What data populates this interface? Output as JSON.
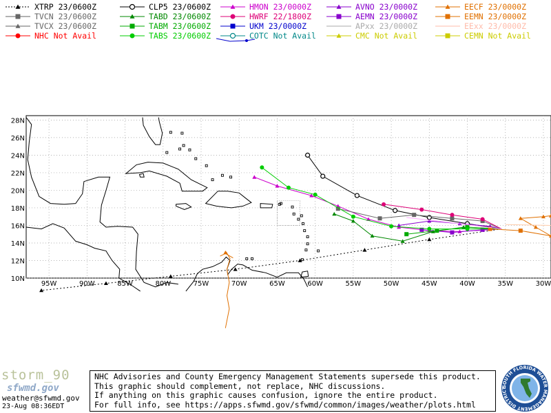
{
  "legend": [
    {
      "label": "XTRP 23/0600Z",
      "color": "#000000",
      "marker": "triangle",
      "dash": true
    },
    {
      "label": "CLP5 23/0600Z",
      "color": "#000000",
      "marker": "circle-open"
    },
    {
      "label": "HMON 23/0000Z",
      "color": "#cc00cc",
      "marker": "triangle"
    },
    {
      "label": "AVNO 23/0000Z",
      "color": "#8800cc",
      "marker": "triangle"
    },
    {
      "label": "EECF 23/0000Z",
      "color": "#e07000",
      "marker": "triangle"
    },
    {
      "label": "TVCN 23/0600Z",
      "color": "#666666",
      "marker": "square"
    },
    {
      "label": "TABD 23/0600Z",
      "color": "#008800",
      "marker": "triangle"
    },
    {
      "label": "HWRF 22/1800Z",
      "color": "#dd0077",
      "marker": "circle"
    },
    {
      "label": "AEMN 23/0000Z",
      "color": "#8800cc",
      "marker": "square"
    },
    {
      "label": "EEMN 23/0000Z",
      "color": "#e07000",
      "marker": "square"
    },
    {
      "label": "TVCX 23/0600Z",
      "color": "#666666",
      "marker": "triangle"
    },
    {
      "label": "TABM 23/0600Z",
      "color": "#00aa00",
      "marker": "square"
    },
    {
      "label": "UKM  23/0000Z",
      "color": "#0000cc",
      "marker": "square"
    },
    {
      "label": "APxx 23/0000Z",
      "color": "#aaaaaa",
      "marker": "none"
    },
    {
      "label": "EExx 23/0000Z",
      "color": "#ffbbaa",
      "marker": "none"
    },
    {
      "label": "NHC Not Avail",
      "color": "#ff0000",
      "marker": "circle"
    },
    {
      "label": "TABS 23/0600Z",
      "color": "#00cc00",
      "marker": "circle"
    },
    {
      "label": "COTC Not Avail",
      "color": "#008888",
      "marker": "circle-open"
    },
    {
      "label": "CMC  Not Avail",
      "color": "#cccc00",
      "marker": "triangle"
    },
    {
      "label": "CEMN Not Avail",
      "color": "#cccc00",
      "marker": "square"
    }
  ],
  "map": {
    "lon_min": -98,
    "lon_max": -29,
    "lat_min": 10,
    "lat_max": 28.5,
    "lat_labels": [
      "10N",
      "12N",
      "14N",
      "16N",
      "18N",
      "20N",
      "22N",
      "24N",
      "26N",
      "28N"
    ],
    "lon_labels": [
      "95W",
      "90W",
      "85W",
      "80W",
      "75W",
      "70W",
      "65W",
      "60W",
      "55W",
      "50W",
      "45W",
      "40W",
      "35W",
      "30W"
    ]
  },
  "tracks": [
    {
      "name": "XTRP",
      "color": "#000000",
      "marker": "triangle",
      "dash": "2,3",
      "pts": [
        [
          -35.5,
          15.6
        ],
        [
          -45,
          14.4
        ],
        [
          -53.5,
          13.2
        ],
        [
          -62,
          12
        ],
        [
          -70.5,
          11
        ],
        [
          -79,
          10.2
        ],
        [
          -87.5,
          9.4
        ],
        [
          -96,
          8.6
        ]
      ]
    },
    {
      "name": "CLP5",
      "color": "#000000",
      "marker": "circle-open",
      "pts": [
        [
          -35.5,
          15.6
        ],
        [
          -40,
          16.2
        ],
        [
          -45,
          16.9
        ],
        [
          -49.5,
          17.7
        ],
        [
          -54.5,
          19.4
        ],
        [
          -59,
          21.6
        ],
        [
          -61,
          24
        ]
      ]
    },
    {
      "name": "HMON",
      "color": "#cc00cc",
      "marker": "triangle",
      "pts": [
        [
          -35.5,
          15.6
        ],
        [
          -41,
          15.3
        ],
        [
          -45,
          15.4
        ],
        [
          -49,
          15.8
        ],
        [
          -53,
          16.7
        ],
        [
          -57,
          18.2
        ],
        [
          -60.5,
          19.4
        ],
        [
          -65,
          20.5
        ],
        [
          -68,
          21.5
        ]
      ]
    },
    {
      "name": "AVNO",
      "color": "#8800cc",
      "marker": "triangle",
      "pts": [
        [
          -35.5,
          15.6
        ],
        [
          -37,
          15.9
        ],
        [
          -41,
          16.2
        ],
        [
          -45,
          16.5
        ],
        [
          -49,
          16
        ]
      ]
    },
    {
      "name": "TVCN",
      "color": "#666666",
      "marker": "square",
      "pts": [
        [
          -35.5,
          15.6
        ],
        [
          -38,
          16.5
        ],
        [
          -42,
          16.8
        ],
        [
          -47,
          17.2
        ],
        [
          -51.5,
          16.8
        ],
        [
          -57,
          17.9
        ]
      ]
    },
    {
      "name": "TABD",
      "color": "#008800",
      "marker": "triangle",
      "pts": [
        [
          -35.5,
          15.6
        ],
        [
          -40.5,
          15.8
        ],
        [
          -44.5,
          15.3
        ],
        [
          -48.5,
          14.2
        ],
        [
          -52.5,
          14.8
        ],
        [
          -55,
          16.5
        ],
        [
          -57.5,
          17.3
        ]
      ]
    },
    {
      "name": "HWRF",
      "color": "#dd0077",
      "marker": "circle",
      "pts": [
        [
          -35.5,
          15.6
        ],
        [
          -38,
          16.7
        ],
        [
          -42,
          17.2
        ],
        [
          -46,
          17.8
        ],
        [
          -51,
          18.4
        ]
      ]
    },
    {
      "name": "AEMN",
      "color": "#8800cc",
      "marker": "square",
      "pts": [
        [
          -35.5,
          15.6
        ],
        [
          -38,
          15.5
        ],
        [
          -42,
          15.2
        ],
        [
          -46,
          15.5
        ]
      ]
    },
    {
      "name": "TABM",
      "color": "#00aa00",
      "marker": "square",
      "pts": [
        [
          -35.5,
          15.6
        ],
        [
          -40,
          15.8
        ],
        [
          -44,
          15.4
        ],
        [
          -48,
          15
        ]
      ]
    },
    {
      "name": "TABS",
      "color": "#00cc00",
      "marker": "circle",
      "pts": [
        [
          -35.5,
          15.6
        ],
        [
          -40,
          15.6
        ],
        [
          -45,
          15.6
        ],
        [
          -50,
          15.9
        ],
        [
          -55,
          17
        ],
        [
          -60,
          19.5
        ],
        [
          -63.5,
          20.3
        ],
        [
          -67,
          22.6
        ]
      ]
    },
    {
      "name": "EECF",
      "color": "#e07000",
      "marker": "triangle",
      "pts": [
        [
          -29,
          14.8
        ],
        [
          -31,
          15.8
        ],
        [
          -33,
          16.8
        ],
        [
          -30,
          17
        ],
        [
          -29,
          17.1
        ]
      ]
    },
    {
      "name": "EEMN",
      "color": "#e07000",
      "marker": "square",
      "pts": [
        [
          -29,
          14.8
        ],
        [
          -33,
          15.4
        ],
        [
          -37,
          15.6
        ]
      ]
    },
    {
      "name": "APxx",
      "color": "#ffaaff",
      "marker": "none",
      "pts": [
        [
          -35.5,
          15.6
        ],
        [
          -42,
          16.3
        ],
        [
          -48,
          16.9
        ]
      ]
    },
    {
      "name": "EExx",
      "color": "#ffccaa",
      "marker": "none",
      "pts": [
        [
          -29,
          16
        ],
        [
          -35,
          16.1
        ]
      ]
    }
  ],
  "footer": {
    "storm": "storm_90",
    "site": "sfwmd.gov",
    "email": "weather@sfwmd.gov",
    "timestamp": "23-Aug 08:36EDT",
    "disclaimer": [
      "NHC Advisories and County Emergency Management Statements supersede this product.",
      "This graphic should complement, not replace, NHC discussions.",
      "If anything on this graphic causes confusion, ignore the entire product.",
      "For full info, see  https://apps.sfwmd.gov/sfwmd/common/images/weather/plots.html"
    ],
    "logo_text": "SOUTH FLORIDA WATER MANAGEMENT DISTRICT"
  }
}
